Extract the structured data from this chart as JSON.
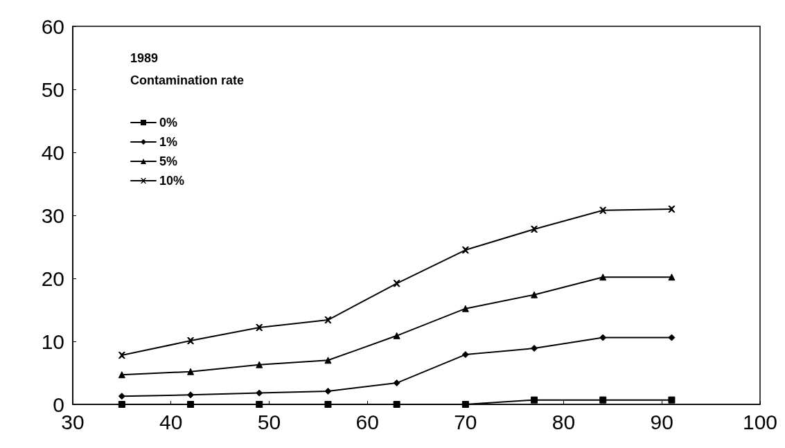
{
  "chart_data": {
    "type": "line",
    "title": "1989",
    "legend_title": "Contamination rate",
    "x": [
      35,
      42,
      49,
      56,
      63,
      70,
      77,
      84,
      91
    ],
    "series": [
      {
        "name": "0%",
        "color": "#000000",
        "marker": "square",
        "values": [
          0,
          0,
          0,
          0,
          0,
          0,
          0.7,
          0.7,
          0.7
        ]
      },
      {
        "name": "1%",
        "color": "#000000",
        "marker": "diamond",
        "values": [
          1.3,
          1.5,
          1.8,
          2.1,
          3.4,
          7.9,
          8.9,
          10.6,
          10.6
        ]
      },
      {
        "name": "5%",
        "color": "#000000",
        "marker": "triangle",
        "values": [
          4.7,
          5.2,
          6.3,
          7.0,
          10.9,
          15.2,
          17.4,
          20.2,
          20.2
        ]
      },
      {
        "name": "10%",
        "color": "#000000",
        "marker": "cross",
        "values": [
          7.8,
          10.1,
          12.2,
          13.4,
          19.2,
          24.5,
          27.8,
          30.8,
          31.0
        ]
      }
    ],
    "xlim": [
      30,
      100
    ],
    "xticks": [
      30,
      40,
      50,
      60,
      70,
      80,
      90,
      100
    ],
    "ylim": [
      0,
      60
    ],
    "yticks": [
      0,
      10,
      20,
      30,
      40,
      50,
      60
    ],
    "grid": false,
    "legend": "top left",
    "line_style": "solid"
  }
}
